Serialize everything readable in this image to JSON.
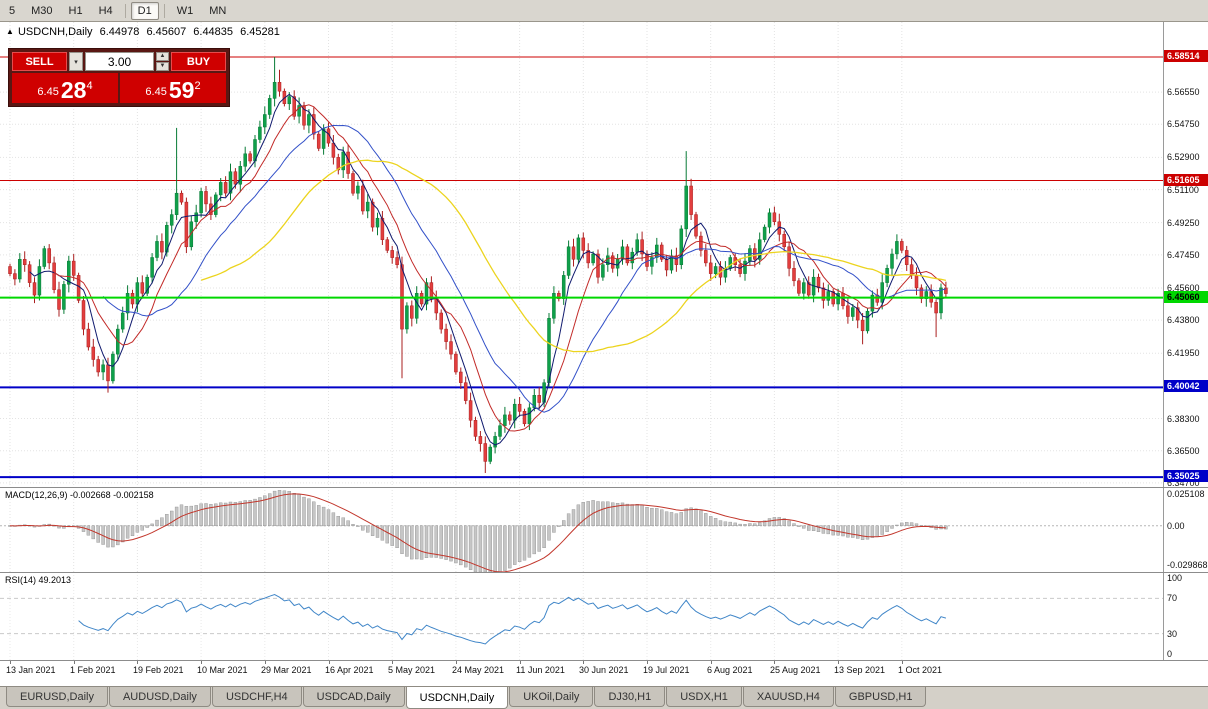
{
  "icons": {
    "collapse_icon": "▲",
    "dropdown_icon": "▾",
    "spinner_up_icon": "▲",
    "spinner_down_icon": "▼"
  },
  "toolbar": {
    "timeframes": [
      {
        "label": "5"
      },
      {
        "label": "M30"
      },
      {
        "label": "H1"
      },
      {
        "label": "H4",
        "sep_after": true
      },
      {
        "label": "D1",
        "active": true,
        "sep_after": true
      },
      {
        "label": "W1"
      },
      {
        "label": "MN"
      }
    ]
  },
  "trade_panel": {
    "sell_label": "SELL",
    "buy_label": "BUY",
    "volume": "3.00",
    "sell_price": {
      "base": "6.45",
      "big": "28",
      "sup": "4"
    },
    "buy_price": {
      "base": "6.45",
      "big": "59",
      "sup": "2"
    }
  },
  "chart_data": {
    "type": "candlestick",
    "title": "USDCNH,Daily",
    "ohlc_display": {
      "open": "6.44978",
      "high": "6.45607",
      "low": "6.44835",
      "close": "6.45281"
    },
    "y_domain": [
      6.3447,
      6.6047
    ],
    "price_ticks": [
      "6.56550",
      "6.54750",
      "6.52900",
      "6.51100",
      "6.49250",
      "6.47450",
      "6.45600",
      "6.43800",
      "6.41950",
      "6.38300",
      "6.36500",
      "6.34700"
    ],
    "levels": [
      {
        "price": 6.58514,
        "label": "6.58514",
        "color": "#cc0000",
        "text_color": "#ffffff",
        "width": 1
      },
      {
        "price": 6.51605,
        "label": "6.51605",
        "color": "#cc0000",
        "text_color": "#ffffff",
        "width": 1
      },
      {
        "price": 6.4506,
        "label": "6.45060",
        "color": "#00d800",
        "text_color": "#000000",
        "width": 2,
        "above": true
      },
      {
        "price": 6.40042,
        "label": "6.40042",
        "color": "#0000c8",
        "text_color": "#ffffff",
        "width": 2
      },
      {
        "price": 6.35025,
        "label": "6.35025",
        "color": "#0000c8",
        "text_color": "#ffffff",
        "width": 2
      }
    ],
    "date_ticks": {
      "labels": [
        "13 Jan 2021",
        "1 Feb 2021",
        "19 Feb 2021",
        "10 Mar 2021",
        "29 Mar 2021",
        "16 Apr 2021",
        "5 May 2021",
        "24 May 2021",
        "11 Jun 2021",
        "30 Jun 2021",
        "19 Jul 2021",
        "6 Aug 2021",
        "25 Aug 2021",
        "13 Sep 2021",
        "1 Oct 2021"
      ],
      "indices": [
        0,
        13,
        26,
        39,
        52,
        65,
        78,
        91,
        104,
        117,
        130,
        143,
        156,
        169,
        182
      ]
    },
    "first_open": 6.468,
    "closes": [
      6.464,
      6.461,
      6.472,
      6.469,
      6.459,
      6.452,
      6.468,
      6.478,
      6.47,
      6.455,
      6.444,
      6.458,
      6.471,
      6.463,
      6.449,
      6.433,
      6.423,
      6.416,
      6.409,
      6.413,
      6.404,
      6.419,
      6.433,
      6.442,
      6.453,
      6.447,
      6.459,
      6.453,
      6.462,
      6.473,
      6.482,
      6.476,
      6.491,
      6.497,
      6.509,
      6.504,
      6.479,
      6.493,
      6.498,
      6.51,
      6.503,
      6.497,
      6.508,
      6.515,
      6.509,
      6.521,
      6.514,
      6.524,
      6.531,
      6.527,
      6.539,
      6.546,
      6.553,
      6.562,
      6.571,
      6.566,
      6.559,
      6.563,
      6.552,
      6.558,
      6.547,
      6.553,
      6.542,
      6.534,
      6.545,
      6.537,
      6.529,
      6.522,
      6.532,
      6.52,
      6.509,
      6.513,
      6.499,
      6.504,
      6.49,
      6.495,
      6.483,
      6.477,
      6.473,
      6.469,
      6.433,
      6.446,
      6.439,
      6.453,
      6.447,
      6.459,
      6.45,
      6.442,
      6.433,
      6.426,
      6.419,
      6.409,
      6.403,
      6.393,
      6.382,
      6.373,
      6.369,
      6.359,
      6.367,
      6.373,
      6.379,
      6.385,
      6.382,
      6.391,
      6.387,
      6.38,
      6.389,
      6.396,
      6.392,
      6.403,
      6.439,
      6.453,
      6.45,
      6.463,
      6.479,
      6.472,
      6.484,
      6.477,
      6.47,
      6.475,
      6.462,
      6.469,
      6.474,
      6.467,
      6.472,
      6.479,
      6.47,
      6.476,
      6.483,
      6.475,
      6.468,
      6.473,
      6.48,
      6.472,
      6.466,
      6.474,
      6.469,
      6.489,
      6.513,
      6.497,
      6.485,
      6.477,
      6.47,
      6.464,
      6.468,
      6.462,
      6.467,
      6.473,
      6.469,
      6.464,
      6.471,
      6.478,
      6.472,
      6.483,
      6.49,
      6.498,
      6.493,
      6.486,
      6.479,
      6.467,
      6.46,
      6.453,
      6.459,
      6.452,
      6.462,
      6.456,
      6.449,
      6.454,
      6.447,
      6.453,
      6.446,
      6.44,
      6.445,
      6.438,
      6.432,
      6.443,
      6.452,
      6.448,
      6.459,
      6.467,
      6.475,
      6.482,
      6.477,
      6.469,
      6.463,
      6.456,
      6.45,
      6.454,
      6.448,
      6.442,
      6.456,
      6.4528
    ],
    "wick_overrides": [
      {
        "i": 20,
        "l": 6.3975
      },
      {
        "i": 34,
        "h": 6.5455
      },
      {
        "i": 54,
        "h": 6.5851
      },
      {
        "i": 55,
        "h": 6.578
      },
      {
        "i": 80,
        "l": 6.4055
      },
      {
        "i": 97,
        "l": 6.3525
      },
      {
        "i": 110,
        "l": 6.4005
      },
      {
        "i": 138,
        "h": 6.5325
      },
      {
        "i": 174,
        "l": 6.4245
      },
      {
        "i": 189,
        "l": 6.4285
      }
    ],
    "candle_colors": {
      "up": "#0fa04a",
      "up_stroke": "#077a36",
      "down": "#e23e3e",
      "down_stroke": "#aa1f1f"
    },
    "moving_averages": [
      {
        "period": 5,
        "color": "#101a6e",
        "width": 1
      },
      {
        "period": 10,
        "color": "#c22a28",
        "width": 1
      },
      {
        "period": 20,
        "color": "#3250c8",
        "width": 1
      },
      {
        "period": 40,
        "color": "#ecd41e",
        "width": 1.3
      }
    ],
    "macd": {
      "label": "MACD(12,26,9)",
      "values_text": "-0.002668 -0.002158",
      "fast": 12,
      "slow": 26,
      "signal": 9,
      "range": [
        -0.029868,
        0.025108
      ],
      "axis_labels": [
        "0.025108",
        "0.00",
        "-0.029868"
      ],
      "bar_fill": "#c6c6c6",
      "bar_stroke": "#8e8e8e",
      "signal_color": "#c2372c"
    },
    "rsi": {
      "label": "RSI(14)",
      "value_text": "49.2013",
      "period": 14,
      "levels": [
        70,
        30
      ],
      "axis_labels": [
        "100",
        "70",
        "30",
        "0"
      ],
      "line_color": "#4086c8"
    }
  },
  "tabs": {
    "items": [
      {
        "label": "EURUSD,Daily"
      },
      {
        "label": "AUDUSD,Daily"
      },
      {
        "label": "USDCHF,H4"
      },
      {
        "label": "USDCAD,Daily"
      },
      {
        "label": "USDCNH,Daily",
        "active": true
      },
      {
        "label": "UKOil,Daily"
      },
      {
        "label": "DJ30,H1"
      },
      {
        "label": "USDX,H1"
      },
      {
        "label": "XAUUSD,H4"
      },
      {
        "label": "GBPUSD,H1"
      }
    ]
  }
}
